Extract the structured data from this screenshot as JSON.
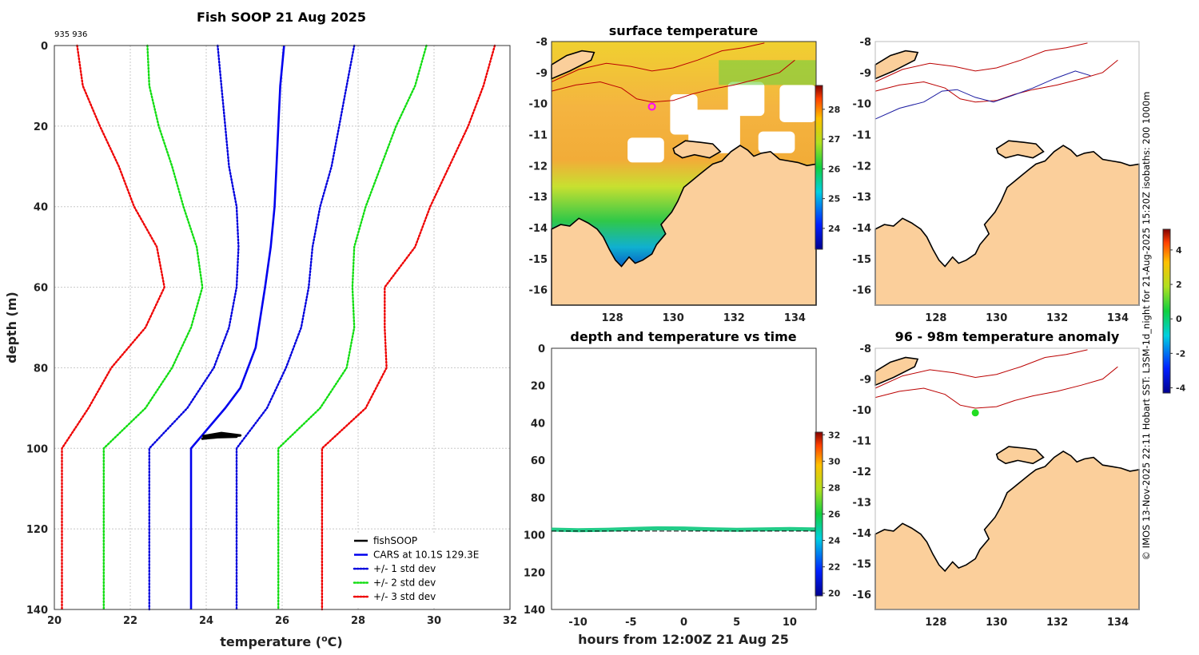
{
  "figure": {
    "colors": {
      "land": "#fbcf9b",
      "cars": "#0000ee",
      "std1": "#0000dd",
      "std2": "#11dd11",
      "std3": "#ee0000",
      "fish": "#000000",
      "isobath_shallow": "#bb0000",
      "isobath_deep": "#1a1aa0",
      "anomaly_marker": "#22dd22",
      "position_marker": "#ff00ff"
    },
    "credit": "© IMOS 13-Nov-2025 22:11 Hobart SST: L3SM-1d_night for 21-Aug-2025 15:20Z isobaths: 200  1000m"
  },
  "chart_data": [
    {
      "id": "profile",
      "type": "line",
      "title": "Fish SOOP 21 Aug 2025",
      "subtitle": "935 936",
      "xlabel": "temperature (",
      "xlabel_unit": "o",
      "xlabel_end": "C)",
      "ylabel": "depth (m)",
      "xlim": [
        20,
        32
      ],
      "ylim": [
        0,
        140
      ],
      "xticks": [
        20,
        22,
        24,
        26,
        28,
        30,
        32
      ],
      "yticks": [
        0,
        20,
        40,
        60,
        80,
        100,
        120,
        140
      ],
      "y_reversed": true,
      "legend": "bottom-right",
      "series": [
        {
          "name": "fishSOOP",
          "style": "solid",
          "color": "#000000",
          "x": [
            23.9,
            24.4,
            24.9,
            24.1,
            23.9,
            24.6,
            24.8,
            24.0
          ],
          "y": [
            97.0,
            96.2,
            96.8,
            97.4,
            97.6,
            96.5,
            97.1,
            97.3
          ]
        },
        {
          "name": "CARS at 10.1S 129.3E",
          "style": "solid",
          "color": "#0000ee",
          "x": [
            26.05,
            25.95,
            25.9,
            25.85,
            25.8,
            25.7,
            25.55,
            25.3,
            24.9,
            24.5,
            23.6,
            23.6
          ],
          "y": [
            0,
            10,
            20,
            30,
            40,
            50,
            60,
            75,
            85,
            90,
            100,
            140
          ]
        },
        {
          "name": "+/- 1 std dev",
          "style": "dotted",
          "color": "#0000dd",
          "x": [
            24.3,
            24.4,
            24.5,
            24.6,
            24.8,
            24.85,
            24.8,
            24.6,
            24.2,
            23.5,
            22.5,
            22.5
          ],
          "y": [
            0,
            10,
            20,
            30,
            40,
            50,
            60,
            70,
            80,
            90,
            100,
            140
          ],
          "x2": [
            27.9,
            27.7,
            27.5,
            27.3,
            27.0,
            26.8,
            26.7,
            26.5,
            26.1,
            25.6,
            24.8,
            24.8
          ]
        },
        {
          "name": "+/- 2 std dev",
          "style": "dotted",
          "color": "#11dd11",
          "x": [
            22.45,
            22.5,
            22.75,
            23.1,
            23.4,
            23.75,
            23.9,
            23.6,
            23.1,
            22.4,
            21.3,
            21.3
          ],
          "y": [
            0,
            10,
            20,
            30,
            40,
            50,
            60,
            70,
            80,
            90,
            100,
            140
          ],
          "x2": [
            29.8,
            29.5,
            29.0,
            28.6,
            28.2,
            27.9,
            27.85,
            27.9,
            27.7,
            27.0,
            25.9,
            25.9
          ]
        },
        {
          "name": "+/- 3 std dev",
          "style": "dotted",
          "color": "#ee0000",
          "x": [
            20.6,
            20.75,
            21.2,
            21.7,
            22.1,
            22.7,
            22.9,
            22.4,
            21.5,
            20.9,
            20.2,
            20.2
          ],
          "y": [
            0,
            10,
            20,
            30,
            40,
            50,
            60,
            70,
            80,
            90,
            100,
            140
          ],
          "x2": [
            31.6,
            31.3,
            30.9,
            30.4,
            29.9,
            29.5,
            28.7,
            28.7,
            28.75,
            28.2,
            27.05,
            27.05
          ]
        }
      ]
    },
    {
      "id": "sst_map",
      "type": "heatmap",
      "title": "surface temperature",
      "xlim": [
        126,
        134.7
      ],
      "ylim": [
        -16.5,
        -8
      ],
      "xticks": [
        128,
        130,
        132,
        134
      ],
      "yticks": [
        -8,
        -9,
        -10,
        -11,
        -12,
        -13,
        -14,
        -15,
        -16
      ],
      "colorbar": {
        "min": 23.3,
        "max": 28.8,
        "ticks": [
          24,
          25,
          26,
          27,
          28
        ]
      },
      "marker": {
        "lon": 129.3,
        "lat": -10.1
      }
    },
    {
      "id": "isobath_map",
      "type": "line",
      "title": "",
      "xlim": [
        126,
        134.7
      ],
      "ylim": [
        -16.5,
        -8
      ],
      "xticks": [
        128,
        130,
        132,
        134
      ],
      "yticks": [
        -8,
        -9,
        -10,
        -11,
        -12,
        -13,
        -14,
        -15,
        -16
      ],
      "isobaths_m": [
        200,
        1000
      ]
    },
    {
      "id": "depth_time",
      "type": "scatter",
      "title": "depth and temperature vs time",
      "xlabel": "hours from 12:00Z 21 Aug 25",
      "xlim": [
        -12.5,
        12.5
      ],
      "ylim": [
        0,
        140
      ],
      "xticks": [
        -10,
        -5,
        0,
        5,
        10
      ],
      "yticks": [
        0,
        20,
        40,
        60,
        80,
        100,
        120,
        140
      ],
      "y_reversed": true,
      "reference_depth": 98,
      "series": [
        {
          "name": "depth",
          "x": [
            -12.5,
            -10,
            -7.5,
            -5,
            -2.5,
            0,
            2.5,
            5,
            7.5,
            10,
            12.5
          ],
          "y": [
            97.2,
            97.5,
            97.3,
            96.9,
            96.5,
            96.6,
            97.0,
            97.3,
            97.1,
            96.9,
            97.1
          ],
          "temperature": 24.2
        }
      ],
      "colorbar": {
        "min": 19.8,
        "max": 32.2,
        "ticks": [
          20,
          22,
          24,
          26,
          28,
          30,
          32
        ]
      }
    },
    {
      "id": "anomaly_map",
      "type": "scatter",
      "title": "96 - 98m temperature anomaly",
      "xlim": [
        126,
        134.7
      ],
      "ylim": [
        -16.5,
        -8
      ],
      "xticks": [
        128,
        130,
        132,
        134
      ],
      "yticks": [
        -8,
        -9,
        -10,
        -11,
        -12,
        -13,
        -14,
        -15,
        -16
      ],
      "points": [
        {
          "lon": 129.3,
          "lat": -10.1,
          "anomaly": 0.2
        }
      ],
      "colorbar": {
        "min": -4.3,
        "max": 5.2,
        "ticks": [
          -4,
          -2,
          0,
          2,
          4
        ]
      }
    }
  ]
}
